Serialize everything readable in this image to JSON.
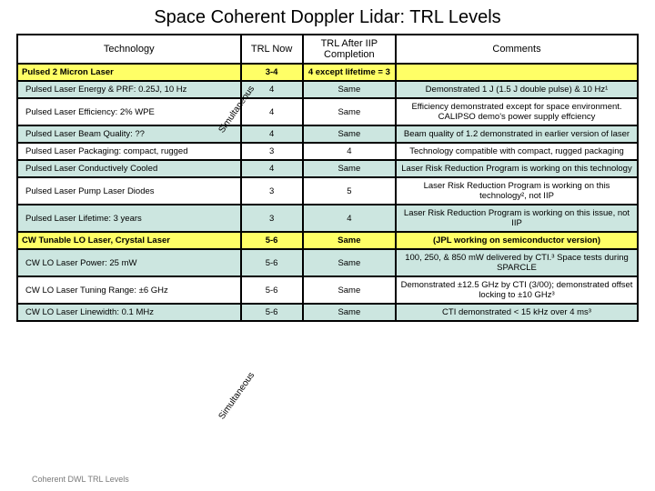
{
  "title": "Space Coherent Doppler Lidar: TRL Levels",
  "headers": {
    "technology": "Technology",
    "trl_now": "TRL Now",
    "trl_after": "TRL After IIP Completion",
    "comments": "Comments"
  },
  "rows": [
    {
      "tech": "Pulsed 2 Micron Laser",
      "now": "3-4",
      "after": "4 except lifetime = 3",
      "comments": "",
      "cls": "yellow"
    },
    {
      "tech": "Pulsed Laser Energy & PRF: 0.25J, 10 Hz",
      "now": "4",
      "after": "Same",
      "comments": "Demonstrated 1 J (1.5 J double pulse) & 10 Hz¹",
      "cls": "alt"
    },
    {
      "tech": "Pulsed Laser Efficiency: 2% WPE",
      "now": "4",
      "after": "Same",
      "comments": "Efficiency demonstrated except for space environment. CALIPSO demo's power supply effciency",
      "cls": "white"
    },
    {
      "tech": "Pulsed Laser Beam Quality: ??",
      "now": "4",
      "after": "Same",
      "comments": "Beam quality of 1.2 demonstrated in earlier version of laser",
      "cls": "alt"
    },
    {
      "tech": "Pulsed Laser Packaging: compact, rugged",
      "now": "3",
      "after": "4",
      "comments": "Technology compatible with compact, rugged packaging",
      "cls": "white"
    },
    {
      "tech": "Pulsed Laser Conductively Cooled",
      "now": "4",
      "after": "Same",
      "comments": "Laser Risk Reduction Program is working on this technology",
      "cls": "alt"
    },
    {
      "tech": "Pulsed Laser Pump Laser Diodes",
      "now": "3",
      "after": "5",
      "comments": "Laser Risk Reduction Program is working on this technology², not IIP",
      "cls": "white"
    },
    {
      "tech": "Pulsed Laser Lifetime: 3 years",
      "now": "3",
      "after": "4",
      "comments": "Laser Risk Reduction Program is working on this issue, not IIP",
      "cls": "alt"
    },
    {
      "tech": "CW Tunable LO Laser, Crystal Laser",
      "now": "5-6",
      "after": "Same",
      "comments": "(JPL working on semiconductor version)",
      "cls": "yellow"
    },
    {
      "tech": "CW LO Laser Power: 25 mW",
      "now": "5-6",
      "after": "Same",
      "comments": "100, 250, & 850 mW delivered by CTI.³ Space tests during SPARCLE",
      "cls": "alt"
    },
    {
      "tech": "CW LO Laser Tuning Range: ±6 GHz",
      "now": "5-6",
      "after": "Same",
      "comments": "Demonstrated ±12.5 GHz by CTI (3/00); demonstrated offset locking to ±10 GHz³",
      "cls": "white"
    },
    {
      "tech": "CW LO Laser Linewidth: 0.1 MHz",
      "now": "5-6",
      "after": "Same",
      "comments": "CTI demonstrated < 15 kHz over 4 ms³",
      "cls": "alt"
    }
  ],
  "diagonal_label": "Simultaneous",
  "footnote": "Coherent DWL TRL Levels"
}
